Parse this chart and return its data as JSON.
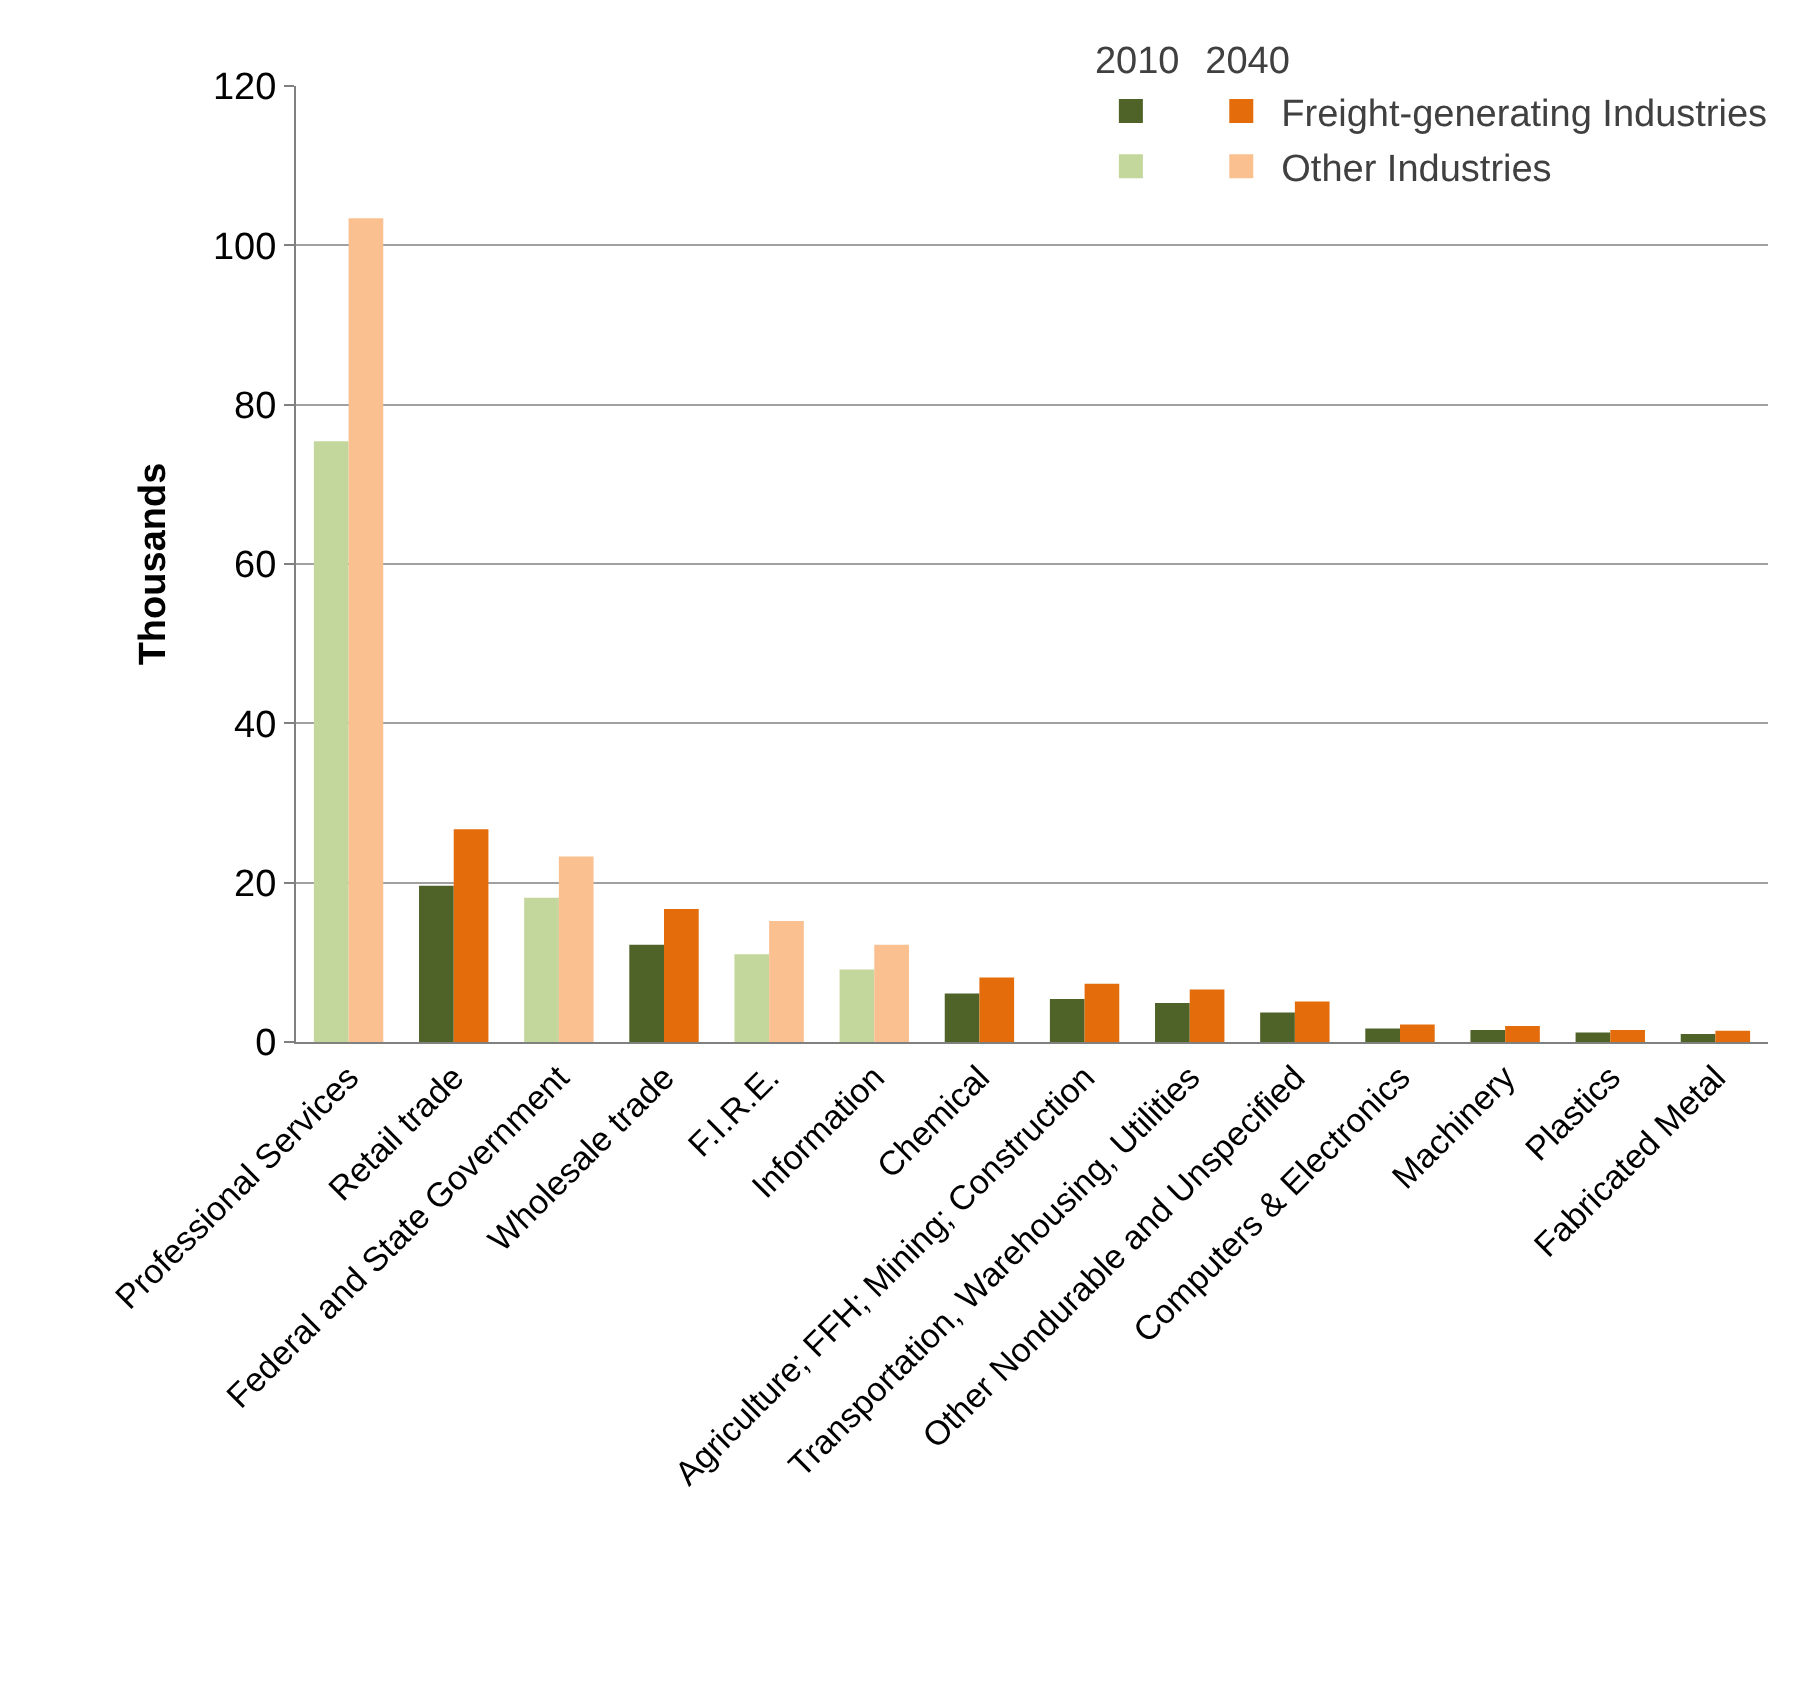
{
  "chart_data": {
    "type": "bar",
    "ylabel": "Thousands",
    "categories": [
      "Professional Services",
      "Retail trade",
      "Federal and State Government",
      "Wholesale trade",
      "F.I.R.E.",
      "Information",
      "Chemical",
      "Agriculture; FFH; Mining; Construction",
      "Transportation, Warehousing, Utilities",
      "Other Nondurable and Unspecified",
      "Computers & Electronics",
      "Machinery",
      "Plastics",
      "Fabricated Metal"
    ],
    "series": [
      {
        "color": "#4f6228",
        "values": [
          null,
          19.6,
          null,
          12.2,
          null,
          null,
          6.1,
          5.4,
          4.9,
          3.7,
          1.7,
          1.5,
          1.2,
          1.0
        ]
      },
      {
        "name": "Freight-generating Industries",
        "color": "#e46c0a",
        "values": [
          null,
          26.7,
          null,
          16.7,
          null,
          null,
          8.1,
          7.3,
          6.6,
          5.1,
          2.2,
          2.0,
          1.5,
          1.4
        ]
      },
      {
        "color": "#c3d69b",
        "values": [
          75.4,
          null,
          18.1,
          null,
          11.0,
          9.1,
          null,
          null,
          null,
          null,
          null,
          null,
          null,
          null
        ]
      },
      {
        "name": "Other Industries",
        "color": "#fac090",
        "values": [
          103.4,
          null,
          23.3,
          null,
          15.2,
          12.2,
          null,
          null,
          null,
          null,
          null,
          null,
          null,
          null
        ]
      }
    ],
    "annotations": [
      "2010",
      "2040"
    ],
    "ylim": [
      0,
      120
    ],
    "yticks": [
      0,
      20,
      40,
      60,
      80,
      100,
      120
    ],
    "grid": "y",
    "legend": "top right"
  }
}
